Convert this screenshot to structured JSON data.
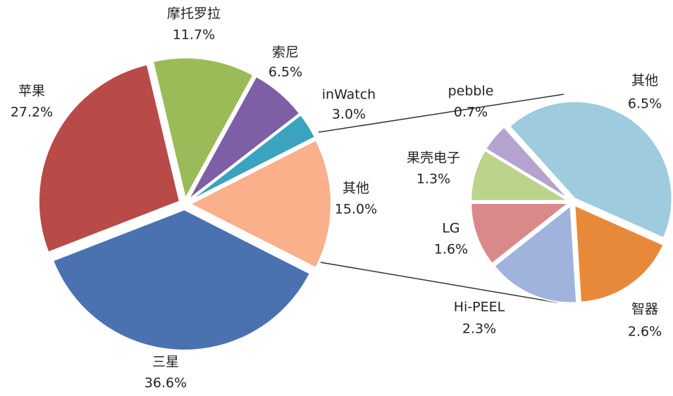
{
  "chart_data": [
    {
      "type": "pie",
      "categories": [
        "苹果",
        "摩托罗拉",
        "索尼",
        "inWatch",
        "其他",
        "三星"
      ],
      "values": [
        27.2,
        11.7,
        6.5,
        3.0,
        15.0,
        36.6
      ],
      "value_labels": [
        "27.2%",
        "11.7%",
        "6.5%",
        "3.0%",
        "15.0%",
        "36.6%"
      ],
      "colors": [
        "#b84a48",
        "#9bbb59",
        "#7d5fa6",
        "#3aa3bf",
        "#f9b08b",
        "#4a72b0"
      ]
    },
    {
      "type": "pie",
      "categories": [
        "其他",
        "智器",
        "Hi-PEEL",
        "LG",
        "果壳电子",
        "pebble"
      ],
      "values": [
        6.5,
        2.6,
        2.3,
        1.6,
        1.3,
        0.7
      ],
      "value_labels": [
        "6.5%",
        "2.6%",
        "2.3%",
        "1.6%",
        "1.3%",
        "0.7%"
      ],
      "colors": [
        "#9ecbdd",
        "#e8893a",
        "#9fb3dd",
        "#d9898a",
        "#bcd38c",
        "#b5a3cf"
      ]
    }
  ]
}
